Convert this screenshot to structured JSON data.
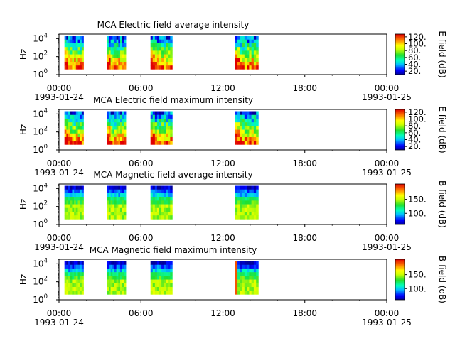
{
  "chart_data": [
    {
      "type": "heatmap",
      "title": "MCA  Electric field average intensity",
      "ylabel": "Hz",
      "colorbar_label": "E field (dB)",
      "colorbar_ticks": [
        "20.",
        "40.",
        "60.",
        "80.",
        "100.",
        "120."
      ],
      "colorbar_range": [
        10,
        128
      ],
      "y_ticks": [
        {
          "base": "10",
          "exp": "0"
        },
        {
          "base": "10",
          "exp": "2"
        },
        {
          "base": "10",
          "exp": "4"
        }
      ],
      "ylim_exponent": [
        0,
        4.5
      ],
      "x_ticks": [
        "00:00",
        "06:00",
        "12:00",
        "18:00",
        "00:00"
      ],
      "x_dates": [
        "1993-01-24",
        "1993-01-25"
      ],
      "xlim_hours": [
        0,
        24
      ],
      "blocks": [
        {
          "start": 0.4,
          "end": 1.8
        },
        {
          "start": 3.5,
          "end": 4.9
        },
        {
          "start": 6.7,
          "end": 8.3
        },
        {
          "start": 12.9,
          "end": 14.6
        }
      ],
      "freq_range_exponent": [
        0.6,
        4.3
      ],
      "colormap": "jet-like"
    },
    {
      "type": "heatmap",
      "title": "MCA  Electric field maximum intensity",
      "ylabel": "Hz",
      "colorbar_label": "E field (dB)",
      "colorbar_ticks": [
        "20.",
        "40.",
        "60.",
        "80.",
        "100.",
        "120."
      ],
      "colorbar_range": [
        10,
        128
      ],
      "y_ticks": [
        {
          "base": "10",
          "exp": "0"
        },
        {
          "base": "10",
          "exp": "2"
        },
        {
          "base": "10",
          "exp": "4"
        }
      ],
      "ylim_exponent": [
        0,
        4.5
      ],
      "x_ticks": [
        "00:00",
        "06:00",
        "12:00",
        "18:00",
        "00:00"
      ],
      "x_dates": [
        "1993-01-24",
        "1993-01-25"
      ],
      "xlim_hours": [
        0,
        24
      ],
      "blocks": [
        {
          "start": 0.4,
          "end": 1.8
        },
        {
          "start": 3.5,
          "end": 4.9
        },
        {
          "start": 6.7,
          "end": 8.3
        },
        {
          "start": 12.9,
          "end": 14.6
        }
      ],
      "freq_range_exponent": [
        0.6,
        4.3
      ],
      "colormap": "jet-like"
    },
    {
      "type": "heatmap",
      "title": "MCA  Magnetic field average intensity",
      "ylabel": "Hz",
      "colorbar_label": "B field (dB)",
      "colorbar_ticks": [
        "100.",
        "150."
      ],
      "colorbar_range": [
        60,
        205
      ],
      "y_ticks": [
        {
          "base": "10",
          "exp": "0"
        },
        {
          "base": "10",
          "exp": "2"
        },
        {
          "base": "10",
          "exp": "4"
        }
      ],
      "ylim_exponent": [
        0,
        4.5
      ],
      "x_ticks": [
        "00:00",
        "06:00",
        "12:00",
        "18:00",
        "00:00"
      ],
      "x_dates": [
        "1993-01-24",
        "1993-01-25"
      ],
      "xlim_hours": [
        0,
        24
      ],
      "blocks": [
        {
          "start": 0.4,
          "end": 1.8
        },
        {
          "start": 3.5,
          "end": 4.9
        },
        {
          "start": 6.7,
          "end": 8.3
        },
        {
          "start": 12.9,
          "end": 14.6
        }
      ],
      "freq_range_exponent": [
        0.6,
        4.3
      ],
      "colormap": "jet-like"
    },
    {
      "type": "heatmap",
      "title": "MCA  Magnetic field maximum intensity",
      "ylabel": "Hz",
      "colorbar_label": "B field (dB)",
      "colorbar_ticks": [
        "100.",
        "150."
      ],
      "colorbar_range": [
        60,
        205
      ],
      "y_ticks": [
        {
          "base": "10",
          "exp": "0"
        },
        {
          "base": "10",
          "exp": "2"
        },
        {
          "base": "10",
          "exp": "4"
        }
      ],
      "ylim_exponent": [
        0,
        4.5
      ],
      "x_ticks": [
        "00:00",
        "06:00",
        "12:00",
        "18:00",
        "00:00"
      ],
      "x_dates": [
        "1993-01-24",
        "1993-01-25"
      ],
      "xlim_hours": [
        0,
        24
      ],
      "blocks": [
        {
          "start": 0.4,
          "end": 1.8
        },
        {
          "start": 3.5,
          "end": 4.9
        },
        {
          "start": 6.7,
          "end": 8.3
        },
        {
          "start": 12.9,
          "end": 14.6
        }
      ],
      "freq_range_exponent": [
        0.6,
        4.3
      ],
      "colormap": "jet-like"
    }
  ]
}
